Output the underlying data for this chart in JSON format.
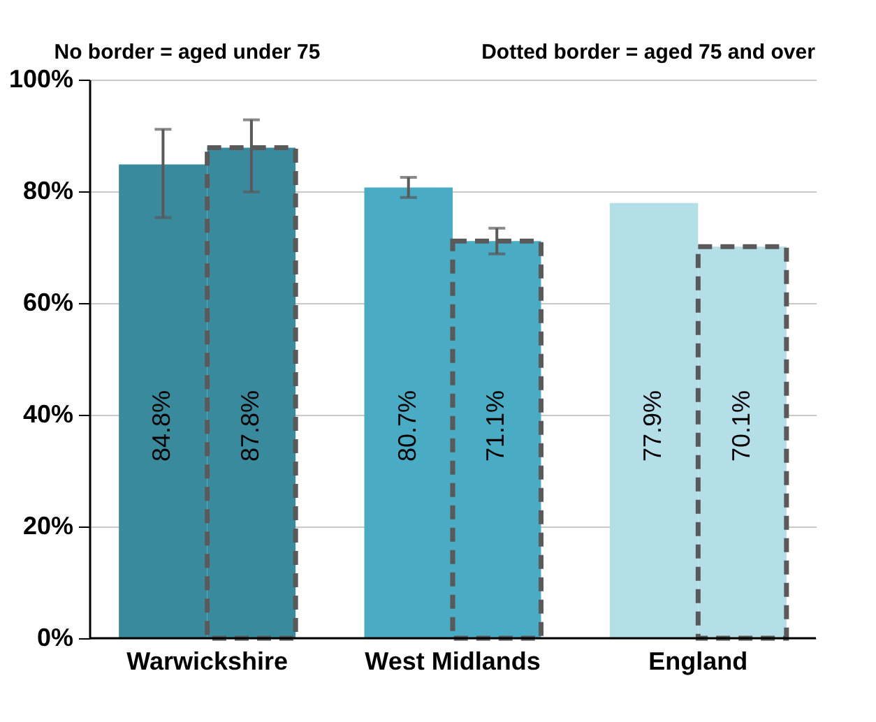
{
  "chart_data": {
    "type": "bar",
    "categories": [
      "Warwickshire",
      "West Midlands",
      "England"
    ],
    "series": [
      {
        "colors": [
          "#3a8a9e",
          "#4aabc5",
          "#b5dfe8"
        ],
        "values": [
          84.8,
          80.7,
          77.9
        ],
        "value_labels": [
          "84.8%",
          "80.7%",
          "77.9%"
        ],
        "errors": [
          [
            75.3,
            91.1
          ],
          [
            78.9,
            82.5
          ],
          null
        ]
      },
      {
        "colors": [
          "#3a8a9e",
          "#4aabc5",
          "#b5dfe8"
        ],
        "values": [
          87.8,
          71.1,
          70.1
        ],
        "value_labels": [
          "87.8%",
          "71.1%",
          "70.1%"
        ],
        "errors": [
          [
            79.9,
            92.8
          ],
          [
            68.8,
            73.4
          ],
          null
        ],
        "line_style": "dashed"
      }
    ],
    "ylim": [
      0,
      100
    ],
    "yticks": [
      {
        "value": 0,
        "label": "0%"
      },
      {
        "value": 20,
        "label": "20%"
      },
      {
        "value": 40,
        "label": "40%"
      },
      {
        "value": 60,
        "label": "60%"
      },
      {
        "value": 80,
        "label": "80%"
      },
      {
        "value": 100,
        "label": "100%"
      }
    ],
    "grid": "y",
    "annotations": [
      "No border = aged under 75",
      "Dotted border = aged 75 and over"
    ]
  }
}
